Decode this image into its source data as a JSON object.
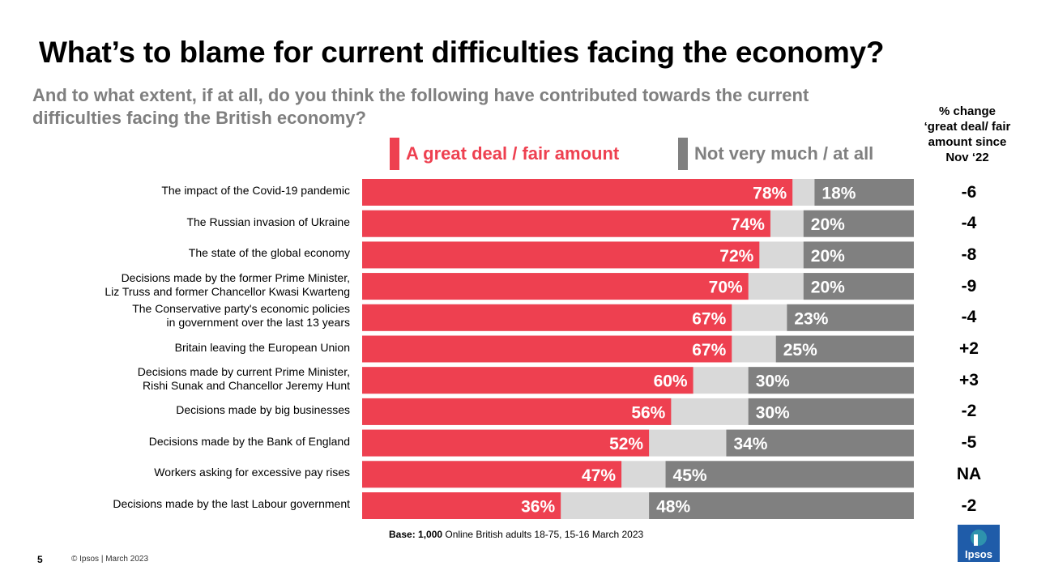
{
  "title": "What’s to blame for current difficulties facing the economy?",
  "subtitle": "And to what extent, if at all, do you think the following have contributed towards the current difficulties facing the British economy?",
  "change_header": "% change ‘great deal/ fair amount since Nov ‘22",
  "colors": {
    "agree": "#ee4050",
    "disagree": "#808080",
    "neutral": "#d9d9d9",
    "logo": "#1f5ca9",
    "logo_accent": "#3bbfb0"
  },
  "chart_data": {
    "type": "bar",
    "orientation": "horizontal",
    "stacked": true,
    "title": "What’s to blame for current difficulties facing the economy?",
    "xlim": [
      0,
      100
    ],
    "categories": [
      "The impact of the Covid-19 pandemic",
      "The Russian invasion of Ukraine",
      "The state of the global economy",
      "Decisions made by the former Prime Minister, Liz Truss and former Chancellor Kwasi Kwarteng",
      "The Conservative party's economic policies in government over the last 13 years",
      "Britain leaving the European Union",
      "Decisions made by current Prime Minister, Rishi Sunak and Chancellor Jeremy Hunt",
      "Decisions made by big businesses",
      "Decisions made by the Bank of England",
      "Workers asking for excessive pay rises",
      "Decisions made by the last Labour government"
    ],
    "label_lines": [
      [
        "The impact of the Covid-19 pandemic"
      ],
      [
        "The Russian invasion of Ukraine"
      ],
      [
        "The state of the global economy"
      ],
      [
        "Decisions made by the former Prime Minister,",
        "Liz Truss and former Chancellor Kwasi Kwarteng"
      ],
      [
        "The Conservative party's economic policies",
        "in government over the last 13 years"
      ],
      [
        "Britain leaving the European Union"
      ],
      [
        "Decisions made by current Prime Minister,",
        "Rishi Sunak and Chancellor Jeremy Hunt"
      ],
      [
        "Decisions made by big businesses"
      ],
      [
        "Decisions made by the Bank of England"
      ],
      [
        "Workers asking for excessive pay rises"
      ],
      [
        "Decisions made by the last Labour government"
      ]
    ],
    "series": [
      {
        "name": "A great deal / fair amount",
        "values": [
          78,
          74,
          72,
          70,
          67,
          67,
          60,
          56,
          52,
          47,
          36
        ]
      },
      {
        "name": "Not very much / at all",
        "values": [
          18,
          20,
          20,
          20,
          23,
          25,
          30,
          30,
          34,
          45,
          48
        ]
      }
    ],
    "change_since_nov22": [
      "-6",
      "-4",
      "-8",
      "-9",
      "-4",
      "+2",
      "+3",
      "-2",
      "-5",
      "NA",
      "-2"
    ],
    "legend": [
      "A great deal / fair amount",
      "Not very much / at all"
    ]
  },
  "footer": {
    "base_bold": "Base: 1,000",
    "base_rest": " Online British adults 18-75, 15-16 March 2023",
    "page_number": "5",
    "copyright": "© Ipsos | March 2023",
    "logo_text": "Ipsos"
  }
}
